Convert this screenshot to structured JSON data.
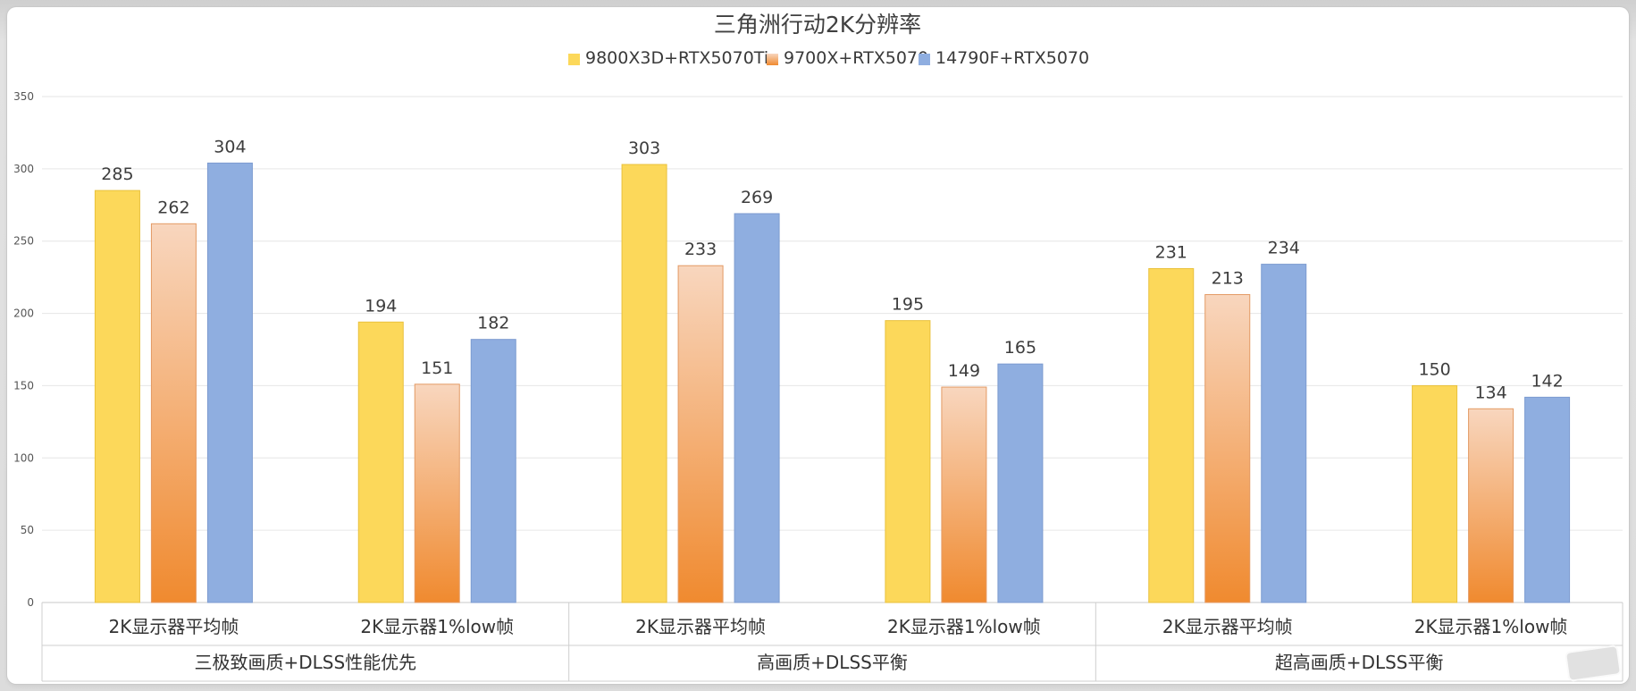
{
  "chart_data": {
    "type": "bar",
    "title": "三角洲行动2K分辨率",
    "ylim": [
      0,
      350
    ],
    "yticks": [
      0,
      50,
      100,
      150,
      200,
      250,
      300,
      350
    ],
    "grid": true,
    "legend_position": "top-center",
    "categories": [
      "2K显示器平均帧",
      "2K显示器1%low帧",
      "2K显示器平均帧",
      "2K显示器1%low帧",
      "2K显示器平均帧",
      "2K显示器1%low帧"
    ],
    "groups": [
      {
        "label": "三极致画质+DLSS性能优先",
        "span": 2
      },
      {
        "label": "高画质+DLSS平衡",
        "span": 2
      },
      {
        "label": "超高画质+DLSS平衡",
        "span": 2
      }
    ],
    "series": [
      {
        "name": "9800X3D+RTX5070Ti",
        "color": "#fcd85a",
        "values": [
          285,
          194,
          303,
          195,
          231,
          150
        ]
      },
      {
        "name": "9700X+RTX5070",
        "color": "#f08a2f",
        "color_top": "#f8d6be",
        "values": [
          262,
          151,
          233,
          149,
          213,
          134
        ]
      },
      {
        "name": "14790F+RTX5070",
        "color": "#8faee0",
        "values": [
          304,
          182,
          269,
          165,
          234,
          142
        ]
      }
    ]
  }
}
